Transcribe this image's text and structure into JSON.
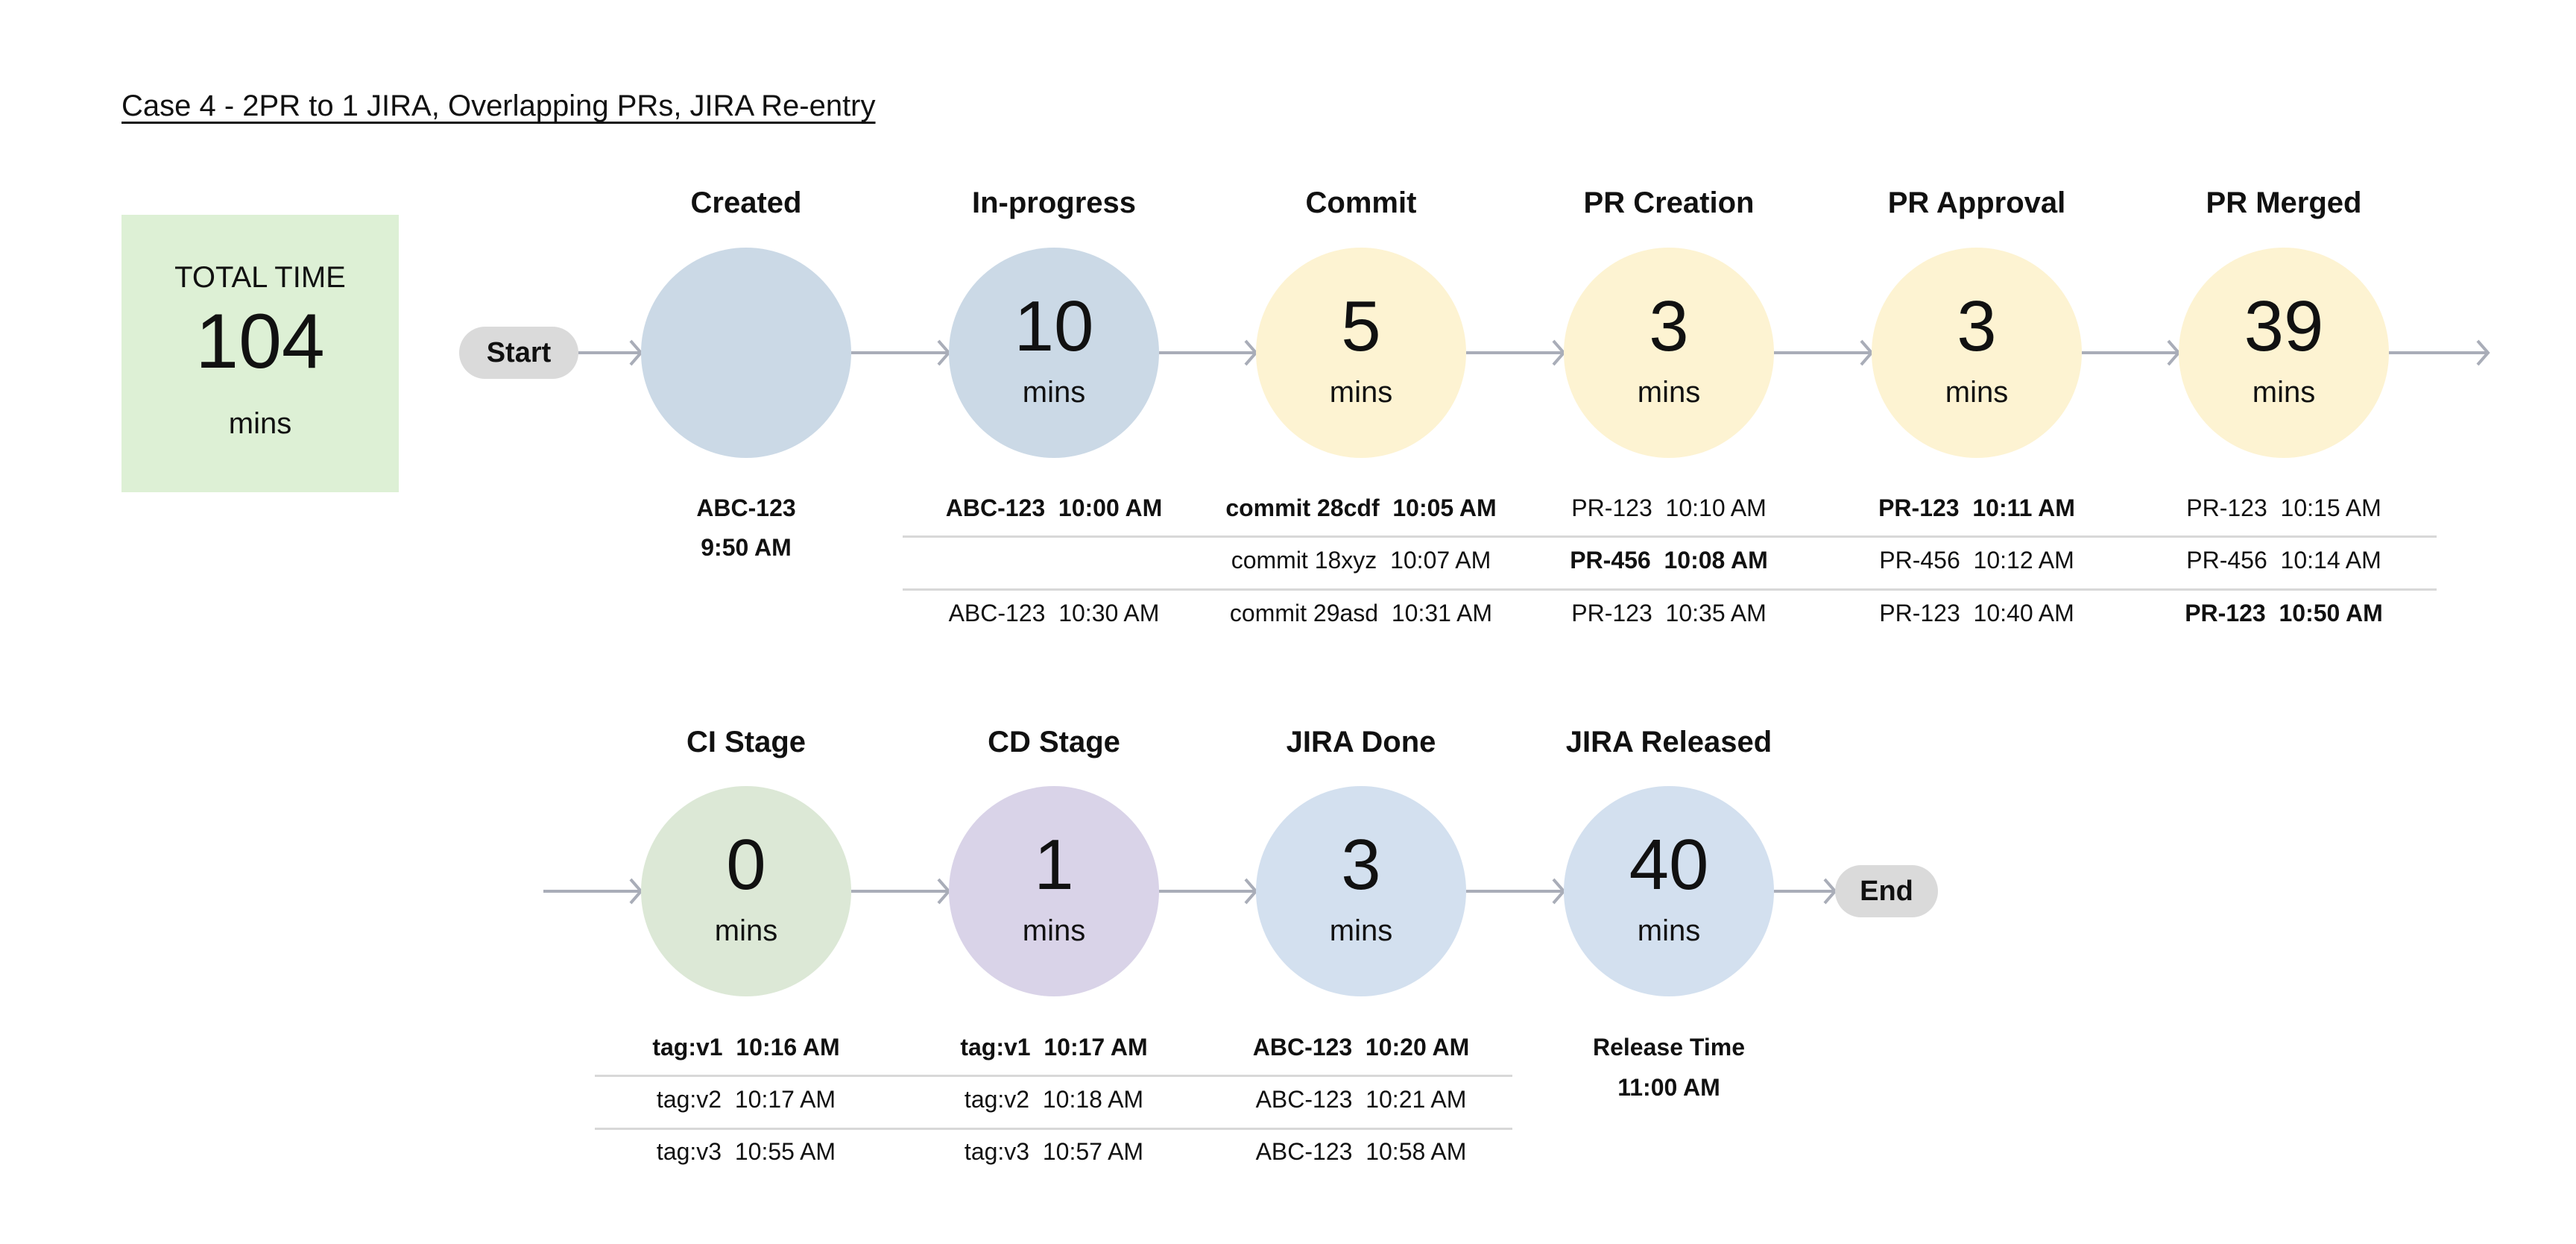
{
  "title": "Case 4 - 2PR to 1 JIRA, Overlapping PRs, JIRA Re-entry",
  "total": {
    "label": "TOTAL TIME",
    "value": "104",
    "unit": "mins",
    "color": "#ddf0d5"
  },
  "start_label": "Start",
  "end_label": "End",
  "colors": {
    "arrow": "#a9adb8",
    "pill": "#dadada",
    "separator": "#d8d8d8"
  },
  "rows": [
    {
      "stages": [
        {
          "label": "Created",
          "value": "",
          "unit": "",
          "color": "#cbd9e6",
          "events": [
            {
              "text": "ABC-123",
              "bold": true
            },
            {
              "text": "9:50 AM",
              "bold": true
            }
          ],
          "stacked": true
        },
        {
          "label": "In-progress",
          "value": "10",
          "unit": "mins",
          "color": "#cbd9e6",
          "events": [
            {
              "text": "ABC-123  10:00 AM",
              "bold": true
            },
            null,
            {
              "text": "ABC-123  10:30 AM",
              "bold": false
            }
          ]
        },
        {
          "label": "Commit",
          "value": "5",
          "unit": "mins",
          "color": "#fdf3d2",
          "events": [
            {
              "text": "commit 28cdf  10:05 AM",
              "bold": true
            },
            {
              "text": "commit 18xyz  10:07 AM",
              "bold": false
            },
            {
              "text": "commit 29asd  10:31 AM",
              "bold": false
            }
          ]
        },
        {
          "label": "PR Creation",
          "value": "3",
          "unit": "mins",
          "color": "#fdf3d2",
          "events": [
            {
              "text": "PR-123  10:10 AM",
              "bold": false
            },
            {
              "text": "PR-456  10:08 AM",
              "bold": true
            },
            {
              "text": "PR-123  10:35 AM",
              "bold": false
            }
          ]
        },
        {
          "label": "PR Approval",
          "value": "3",
          "unit": "mins",
          "color": "#fdf3d2",
          "events": [
            {
              "text": "PR-123  10:11 AM",
              "bold": true
            },
            {
              "text": "PR-456  10:12 AM",
              "bold": false
            },
            {
              "text": "PR-123  10:40 AM",
              "bold": false
            }
          ]
        },
        {
          "label": "PR Merged",
          "value": "39",
          "unit": "mins",
          "color": "#fdf3d2",
          "events": [
            {
              "text": "PR-123  10:15 AM",
              "bold": false
            },
            {
              "text": "PR-456  10:14 AM",
              "bold": false
            },
            {
              "text": "PR-123  10:50 AM",
              "bold": true
            }
          ]
        }
      ]
    },
    {
      "stages": [
        {
          "label": "CI Stage",
          "value": "0",
          "unit": "mins",
          "color": "#dce8d6",
          "events": [
            {
              "text": "tag:v1  10:16 AM",
              "bold": true
            },
            {
              "text": "tag:v2  10:17 AM",
              "bold": false
            },
            {
              "text": "tag:v3  10:55 AM",
              "bold": false
            }
          ]
        },
        {
          "label": "CD Stage",
          "value": "1",
          "unit": "mins",
          "color": "#d9d3e8",
          "events": [
            {
              "text": "tag:v1  10:17 AM",
              "bold": true
            },
            {
              "text": "tag:v2  10:18 AM",
              "bold": false
            },
            {
              "text": "tag:v3  10:57 AM",
              "bold": false
            }
          ]
        },
        {
          "label": "JIRA Done",
          "value": "3",
          "unit": "mins",
          "color": "#d3e0ef",
          "events": [
            {
              "text": "ABC-123  10:20 AM",
              "bold": true
            },
            {
              "text": "ABC-123  10:21 AM",
              "bold": false
            },
            {
              "text": "ABC-123  10:58 AM",
              "bold": false
            }
          ]
        },
        {
          "label": "JIRA Released",
          "value": "40",
          "unit": "mins",
          "color": "#d3e0ef",
          "events": [
            {
              "text": "Release Time",
              "bold": true
            },
            {
              "text": "11:00 AM",
              "bold": true
            }
          ],
          "stacked": true
        }
      ]
    }
  ]
}
